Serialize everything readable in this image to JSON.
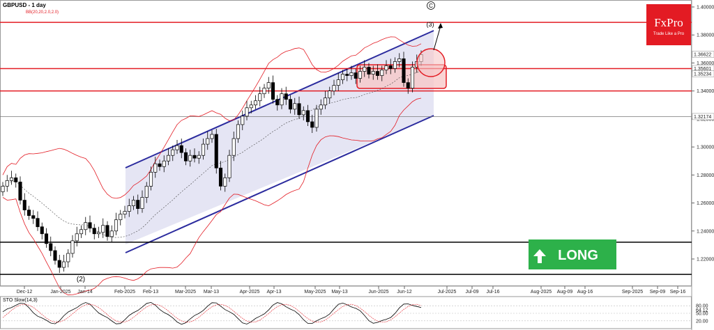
{
  "header": {
    "symbol_title": "GBPUSD - 1 day",
    "bb_label": "BB(20,20,2.0,2.0)"
  },
  "brand": {
    "name": "FxPro",
    "tagline": "Trade Like a Pro",
    "color": "#e31b23"
  },
  "badge": {
    "label": "LONG",
    "color": "#2db14a"
  },
  "indicator": {
    "title": "STO Slow(14,3)",
    "price_labels": [
      "80.00",
      "64.12",
      "50.00",
      "20.00"
    ]
  },
  "wave_labels": {
    "c": "C",
    "three": "(3)",
    "two": "(2)"
  },
  "chart_data": {
    "type": "candlestick",
    "title": "GBPUSD - 1 day",
    "ylim": [
      1.205,
      1.4055
    ],
    "y_ticks": [
      "1.40000",
      "1.38000",
      "1.36000",
      "1.34000",
      "1.32000",
      "1.30000",
      "1.28000",
      "1.26000",
      "1.24000",
      "1.22000"
    ],
    "price_labels": [
      "1.36622",
      "1.35601",
      "1.35234",
      "1.32174"
    ],
    "x_labels": [
      "Dec-12",
      "Jan-2025",
      "Jan-14",
      "Feb-2025",
      "Feb-13",
      "Mar-2025",
      "Mar-13",
      "Apr-2025",
      "Apr-13",
      "May-2025",
      "May-13",
      "Jun-2025",
      "Jun-12",
      "Jul-2025",
      "Jul-09",
      "Jul-16",
      "Aug-2025",
      "Aug-09",
      "Aug-16",
      "Sep-2025",
      "Sep-09",
      "Sep-16"
    ],
    "horizontal_levels": [
      {
        "value": 1.389,
        "color": "#e31b23"
      },
      {
        "value": 1.356,
        "color": "#e31b23"
      },
      {
        "value": 1.34,
        "color": "#e31b23"
      },
      {
        "value": 1.3217,
        "color": "#777777"
      },
      {
        "value": 1.232,
        "color": "#000000"
      },
      {
        "value": 1.209,
        "color": "#000000"
      }
    ],
    "channel": {
      "upper": [
        [
          "Feb-2025",
          1.287
        ],
        [
          "Jun-2025 end",
          1.385
        ]
      ],
      "lower": [
        [
          "Feb-2025",
          1.225
        ],
        [
          "Jun-2025 end",
          1.322
        ]
      ]
    },
    "close": [
      1.272,
      1.276,
      1.278,
      1.275,
      1.262,
      1.255,
      1.251,
      1.249,
      1.243,
      1.238,
      1.231,
      1.226,
      1.219,
      1.214,
      1.218,
      1.224,
      1.233,
      1.238,
      1.241,
      1.246,
      1.242,
      1.238,
      1.239,
      1.244,
      1.236,
      1.24,
      1.248,
      1.252,
      1.254,
      1.258,
      1.262,
      1.256,
      1.264,
      1.272,
      1.282,
      1.288,
      1.286,
      1.29,
      1.294,
      1.298,
      1.301,
      1.296,
      1.29,
      1.294,
      1.292,
      1.294,
      1.302,
      1.306,
      1.309,
      1.285,
      1.272,
      1.278,
      1.294,
      1.306,
      1.316,
      1.322,
      1.328,
      1.33,
      1.333,
      1.338,
      1.342,
      1.346,
      1.334,
      1.33,
      1.338,
      1.334,
      1.327,
      1.331,
      1.323,
      1.326,
      1.318,
      1.314,
      1.327,
      1.33,
      1.335,
      1.34,
      1.344,
      1.348,
      1.352,
      1.351,
      1.353,
      1.349,
      1.354,
      1.357,
      1.352,
      1.354,
      1.351,
      1.355,
      1.358,
      1.356,
      1.361,
      1.363,
      1.346,
      1.342,
      1.357,
      1.361,
      1.366
    ],
    "series": [
      {
        "name": "GBPUSD",
        "type": "candles"
      },
      {
        "name": "BB(20,20,2.0,2.0)",
        "type": "bands"
      }
    ],
    "stochastic": {
      "name": "STO Slow(14,3)",
      "ylim": [
        0,
        100
      ],
      "levels": [
        80,
        50,
        20
      ],
      "last": 64.12
    }
  }
}
